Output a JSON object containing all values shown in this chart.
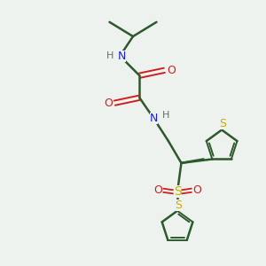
{
  "background_color": "#eef2ee",
  "bond_color": "#2d5a2d",
  "N_color": "#2020cc",
  "O_color": "#cc2020",
  "S_color": "#ccaa00",
  "H_color": "#607060",
  "figsize": [
    3.0,
    3.0
  ],
  "dpi": 100,
  "xlim": [
    0,
    10
  ],
  "ylim": [
    0,
    10
  ]
}
